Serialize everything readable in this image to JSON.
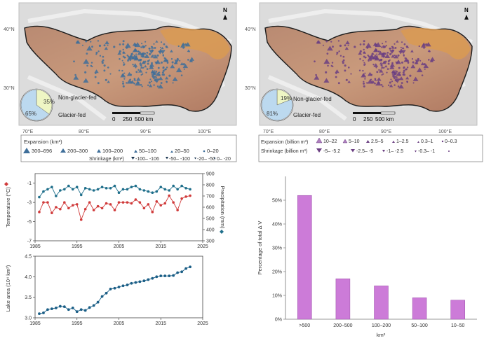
{
  "maps": {
    "left": {
      "north": "N",
      "lat_labels": [
        "40°N",
        "30°N"
      ],
      "lon_labels": [
        "70°E",
        "80°E",
        "90°E",
        "100°E"
      ],
      "scale": [
        "0",
        "250",
        "500 km"
      ],
      "pie": {
        "values": [
          35,
          65
        ],
        "labels": [
          "35%",
          "65%"
        ],
        "legend": [
          "Non-glacier-fed",
          "Glacier-fed"
        ],
        "colors": [
          "#eef6c4",
          "#bcd9ef"
        ]
      }
    },
    "right": {
      "north": "N",
      "lat_labels": [
        "40°N",
        "30°N"
      ],
      "lon_labels": [
        "70°E",
        "80°E",
        "90°E",
        "100°E"
      ],
      "scale": [
        "0",
        "250",
        "500 km"
      ],
      "pie": {
        "values": [
          19,
          81
        ],
        "labels": [
          "19%",
          "81%"
        ],
        "legend": [
          "Non-glacier-fed",
          "Glacier-fed"
        ],
        "colors": [
          "#eef6c4",
          "#bcd9ef"
        ]
      }
    },
    "legend_left": {
      "expansion_label": "Expansion (km²)",
      "expansion": [
        "300–696",
        "200–300",
        "100–200",
        "50–100",
        "20–50",
        "0–20"
      ],
      "shrinkage_label": "Shrinkage (km²)",
      "shrinkage": [
        "-100– -106",
        "-50– -100",
        "-20– -50",
        "0– -20"
      ]
    },
    "legend_right": {
      "expansion_label": "Expansion (billion m³)",
      "expansion": [
        "10–22",
        "5–10",
        "2.5–5",
        "1–2.5",
        "0.3–1",
        "0–0.3"
      ],
      "shrinkage_label": "Shrinkage (billion m³)",
      "shrinkage": [
        "-5– -5.2",
        "-2.5– -5",
        "-1– -2.5",
        "-0.3– -1"
      ]
    }
  },
  "colors": {
    "blue_marker": "#3f6f9a",
    "purple_marker": "#6b3f82",
    "temp": "#d03a3a",
    "precip": "#1f6f8b",
    "lake": "#1a5e86",
    "bar": "#cc7bd8"
  },
  "chart_data": [
    {
      "type": "line",
      "title": "",
      "xlabel": "",
      "xticks": [
        1985,
        1995,
        2005,
        2015,
        2025
      ],
      "xlim": [
        1985,
        2025
      ],
      "ylabel_left": "Temperature (°C)",
      "ylim_left": [
        -7,
        0
      ],
      "yticks_left": [
        -1,
        -3,
        -5,
        -7
      ],
      "ylabel_right": "Precipitation (mm)",
      "ylim_right": [
        300,
        900
      ],
      "yticks_right": [
        900,
        800,
        700,
        600,
        500,
        400,
        300
      ],
      "series": [
        {
          "name": "Temperature",
          "axis": "left",
          "x": [
            1986,
            1987,
            1988,
            1989,
            1990,
            1991,
            1992,
            1993,
            1994,
            1995,
            1996,
            1997,
            1998,
            1999,
            2000,
            2001,
            2002,
            2003,
            2004,
            2005,
            2006,
            2007,
            2008,
            2009,
            2010,
            2011,
            2012,
            2013,
            2014,
            2015,
            2016,
            2017,
            2018,
            2019,
            2020,
            2021,
            2022
          ],
          "values": [
            -4.0,
            -3.0,
            -3.0,
            -4.1,
            -3.5,
            -3.7,
            -3.0,
            -3.6,
            -3.3,
            -3.2,
            -4.8,
            -3.7,
            -3.0,
            -3.8,
            -3.4,
            -3.6,
            -3.1,
            -3.2,
            -3.8,
            -3.0,
            -3.0,
            -3.0,
            -3.1,
            -2.7,
            -3.0,
            -3.6,
            -3.2,
            -4.0,
            -2.9,
            -3.3,
            -3.1,
            -2.3,
            -3.0,
            -3.8,
            -2.6,
            -2.4,
            -2.3
          ]
        },
        {
          "name": "Precipitation",
          "axis": "right",
          "x": [
            1986,
            1987,
            1988,
            1989,
            1990,
            1991,
            1992,
            1993,
            1994,
            1995,
            1996,
            1997,
            1998,
            1999,
            2000,
            2001,
            2002,
            2003,
            2004,
            2005,
            2006,
            2007,
            2008,
            2009,
            2010,
            2011,
            2012,
            2013,
            2014,
            2015,
            2016,
            2017,
            2018,
            2019,
            2020,
            2021,
            2022
          ],
          "values": [
            690,
            740,
            760,
            780,
            700,
            750,
            760,
            790,
            760,
            780,
            710,
            770,
            760,
            750,
            760,
            780,
            770,
            770,
            790,
            730,
            760,
            760,
            780,
            790,
            760,
            750,
            740,
            730,
            740,
            780,
            760,
            750,
            790,
            760,
            790,
            770,
            760
          ]
        }
      ]
    },
    {
      "type": "line",
      "title": "",
      "xlabel": "",
      "ylabel": "Lake area (10⁴ km²)",
      "xticks": [
        1985,
        1995,
        2005,
        2015,
        2025
      ],
      "xlim": [
        1985,
        2025
      ],
      "yticks": [
        3.0,
        3.5,
        4.0,
        4.5
      ],
      "ylim": [
        3.0,
        4.5
      ],
      "series": [
        {
          "name": "Lake area",
          "x": [
            1986,
            1987,
            1988,
            1989,
            1990,
            1991,
            1992,
            1993,
            1994,
            1995,
            1996,
            1997,
            1998,
            1999,
            2000,
            2001,
            2002,
            2003,
            2004,
            2005,
            2006,
            2007,
            2008,
            2009,
            2010,
            2011,
            2012,
            2013,
            2014,
            2015,
            2016,
            2017,
            2018,
            2019,
            2020,
            2021,
            2022
          ],
          "values": [
            3.1,
            3.12,
            3.2,
            3.22,
            3.24,
            3.28,
            3.27,
            3.2,
            3.24,
            3.15,
            3.2,
            3.18,
            3.25,
            3.3,
            3.38,
            3.52,
            3.6,
            3.7,
            3.72,
            3.75,
            3.78,
            3.8,
            3.84,
            3.86,
            3.88,
            3.9,
            3.93,
            3.96,
            4.0,
            4.02,
            4.02,
            4.02,
            4.03,
            4.1,
            4.12,
            4.2,
            4.24
          ]
        }
      ]
    },
    {
      "type": "bar",
      "title": "",
      "categories": [
        ">500",
        "200–500",
        "100–200",
        "50–100",
        "10–50"
      ],
      "values": [
        52,
        17,
        14,
        9,
        8
      ],
      "xlabel": "km²",
      "ylabel": "Percentage of total Δ V",
      "ylim": [
        0,
        60
      ],
      "yticks": [
        0,
        10,
        20,
        30,
        40,
        50
      ],
      "ytick_labels": [
        "0%",
        "10%",
        "20%",
        "30%",
        "40%",
        "50%"
      ]
    }
  ]
}
